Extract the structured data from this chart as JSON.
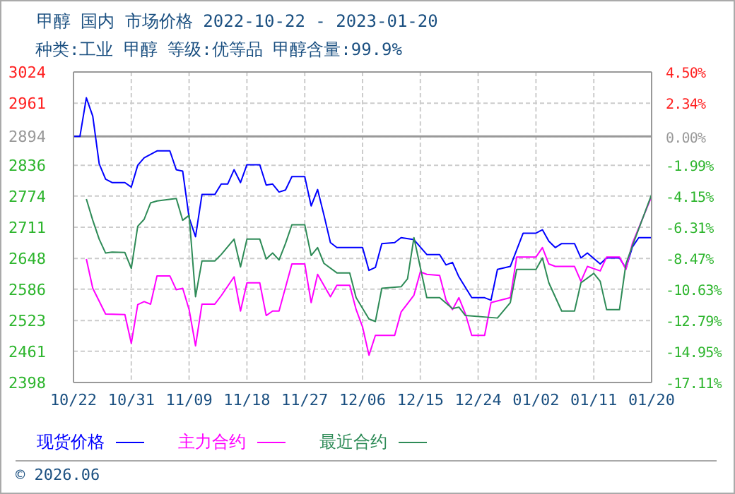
{
  "chart_data": {
    "type": "line",
    "title": "甲醇 国内 市场价格 2022-10-22 - 2023-01-20",
    "subtitle": "种类:工业 甲醇 等级:优等品 甲醇含量:99.9%",
    "annotations": [
      "© 2026.06"
    ],
    "series": [
      {
        "name": "现货价格",
        "color": "#0000ff",
        "x": [
          "2022-10-22",
          "2022-10-23",
          "2022-10-24",
          "2022-10-25",
          "2022-10-26",
          "2022-10-27",
          "2022-10-28",
          "2022-10-30",
          "2022-10-31",
          "2022-11-01",
          "2022-11-02",
          "2022-11-04",
          "2022-11-06",
          "2022-11-07",
          "2022-11-08",
          "2022-11-09",
          "2022-11-10",
          "2022-11-11",
          "2022-11-13",
          "2022-11-14",
          "2022-11-15",
          "2022-11-16",
          "2022-11-17",
          "2022-11-18",
          "2022-11-20",
          "2022-11-21",
          "2022-11-22",
          "2022-11-23",
          "2022-11-24",
          "2022-11-25",
          "2022-11-27",
          "2022-11-28",
          "2022-11-29",
          "2022-11-30",
          "2022-12-01",
          "2022-12-02",
          "2022-12-06",
          "2022-12-07",
          "2022-12-08",
          "2022-12-09",
          "2022-12-11",
          "2022-12-12",
          "2022-12-14",
          "2022-12-16",
          "2022-12-18",
          "2022-12-19",
          "2022-12-20",
          "2022-12-21",
          "2022-12-23",
          "2022-12-25",
          "2022-12-26",
          "2022-12-27",
          "2022-12-29",
          "2022-12-31",
          "2023-01-02",
          "2023-01-03",
          "2023-01-04",
          "2023-01-05",
          "2023-01-06",
          "2023-01-08",
          "2023-01-09",
          "2023-01-10",
          "2023-01-12",
          "2023-01-13",
          "2023-01-15",
          "2023-01-16",
          "2023-01-17",
          "2023-01-18",
          "2023-01-20"
        ],
        "values": [
          2894,
          2894,
          2972,
          2935,
          2839,
          2808,
          2801,
          2801,
          2792,
          2836,
          2851,
          2865,
          2865,
          2827,
          2824,
          2730,
          2692,
          2777,
          2777,
          2798,
          2798,
          2827,
          2801,
          2837,
          2837,
          2796,
          2798,
          2782,
          2786,
          2813,
          2813,
          2754,
          2787,
          2735,
          2680,
          2670,
          2670,
          2624,
          2630,
          2678,
          2680,
          2690,
          2686,
          2656,
          2656,
          2635,
          2640,
          2611,
          2569,
          2569,
          2564,
          2626,
          2632,
          2699,
          2699,
          2706,
          2683,
          2670,
          2678,
          2678,
          2649,
          2659,
          2637,
          2649,
          2649,
          2628,
          2671,
          2690,
          2690
        ]
      },
      {
        "name": "主力合约",
        "color": "#ff00ff",
        "x": [
          "2022-10-24",
          "2022-10-25",
          "2022-10-27",
          "2022-10-30",
          "2022-10-31",
          "2022-11-01",
          "2022-11-02",
          "2022-11-03",
          "2022-11-04",
          "2022-11-06",
          "2022-11-07",
          "2022-11-08",
          "2022-11-09",
          "2022-11-10",
          "2022-11-11",
          "2022-11-13",
          "2022-11-14",
          "2022-11-16",
          "2022-11-17",
          "2022-11-18",
          "2022-11-20",
          "2022-11-21",
          "2022-11-22",
          "2022-11-23",
          "2022-11-25",
          "2022-11-27",
          "2022-11-28",
          "2022-11-29",
          "2022-12-01",
          "2022-12-02",
          "2022-12-04",
          "2022-12-05",
          "2022-12-06",
          "2022-12-07",
          "2022-12-08",
          "2022-12-11",
          "2022-12-12",
          "2022-12-14",
          "2022-12-15",
          "2022-12-16",
          "2022-12-18",
          "2022-12-19",
          "2022-12-20",
          "2022-12-21",
          "2022-12-22",
          "2022-12-23",
          "2022-12-25",
          "2022-12-26",
          "2022-12-29",
          "2022-12-30",
          "2023-01-02",
          "2023-01-03",
          "2023-01-04",
          "2023-01-05",
          "2023-01-08",
          "2023-01-09",
          "2023-01-10",
          "2023-01-12",
          "2023-01-13",
          "2023-01-15",
          "2023-01-16",
          "2023-01-17",
          "2023-01-20"
        ],
        "values": [
          2647,
          2588,
          2536,
          2535,
          2477,
          2555,
          2561,
          2556,
          2613,
          2613,
          2585,
          2588,
          2545,
          2472,
          2556,
          2556,
          2573,
          2611,
          2542,
          2599,
          2599,
          2533,
          2542,
          2542,
          2637,
          2637,
          2559,
          2616,
          2571,
          2594,
          2594,
          2545,
          2510,
          2453,
          2493,
          2493,
          2540,
          2574,
          2621,
          2616,
          2614,
          2564,
          2545,
          2569,
          2537,
          2493,
          2493,
          2559,
          2569,
          2651,
          2651,
          2670,
          2637,
          2632,
          2632,
          2602,
          2632,
          2623,
          2651,
          2651,
          2626,
          2678,
          2773
        ]
      },
      {
        "name": "最近合约",
        "color": "#2e8b57",
        "x": [
          "2022-10-24",
          "2022-10-25",
          "2022-10-26",
          "2022-10-27",
          "2022-10-28",
          "2022-10-30",
          "2022-10-31",
          "2022-11-01",
          "2022-11-02",
          "2022-11-03",
          "2022-11-04",
          "2022-11-07",
          "2022-11-08",
          "2022-11-09",
          "2022-11-10",
          "2022-11-11",
          "2022-11-13",
          "2022-11-14",
          "2022-11-16",
          "2022-11-17",
          "2022-11-18",
          "2022-11-20",
          "2022-11-21",
          "2022-11-22",
          "2022-11-23",
          "2022-11-24",
          "2022-11-25",
          "2022-11-27",
          "2022-11-28",
          "2022-11-29",
          "2022-11-30",
          "2022-12-02",
          "2022-12-04",
          "2022-12-05",
          "2022-12-07",
          "2022-12-08",
          "2022-12-09",
          "2022-12-12",
          "2022-12-13",
          "2022-12-14",
          "2022-12-16",
          "2022-12-18",
          "2022-12-20",
          "2022-12-21",
          "2022-12-22",
          "2022-12-27",
          "2022-12-29",
          "2022-12-30",
          "2023-01-02",
          "2023-01-03",
          "2023-01-04",
          "2023-01-06",
          "2023-01-08",
          "2023-01-09",
          "2023-01-11",
          "2023-01-12",
          "2023-01-13",
          "2023-01-15",
          "2023-01-16",
          "2023-01-17",
          "2023-01-20"
        ],
        "values": [
          2768,
          2725,
          2687,
          2659,
          2661,
          2660,
          2628,
          2713,
          2727,
          2760,
          2764,
          2769,
          2725,
          2735,
          2571,
          2643,
          2643,
          2656,
          2687,
          2631,
          2687,
          2687,
          2647,
          2659,
          2645,
          2678,
          2716,
          2716,
          2654,
          2670,
          2638,
          2619,
          2619,
          2569,
          2526,
          2521,
          2588,
          2591,
          2607,
          2690,
          2569,
          2569,
          2547,
          2550,
          2533,
          2528,
          2559,
          2626,
          2626,
          2649,
          2599,
          2542,
          2542,
          2599,
          2618,
          2602,
          2545,
          2545,
          2637,
          2673,
          2777
        ]
      }
    ],
    "xlim": [
      "2022-10-22",
      "2023-01-20"
    ],
    "xticks": [
      {
        "value": "2022-10-22",
        "label": "10/22"
      },
      {
        "value": "2022-10-31",
        "label": "10/31"
      },
      {
        "value": "2022-11-09",
        "label": "11/09"
      },
      {
        "value": "2022-11-18",
        "label": "11/18"
      },
      {
        "value": "2022-11-27",
        "label": "11/27"
      },
      {
        "value": "2022-12-06",
        "label": "12/06"
      },
      {
        "value": "2022-12-15",
        "label": "12/15"
      },
      {
        "value": "2022-12-24",
        "label": "12/24"
      },
      {
        "value": "2023-01-02",
        "label": "01/02"
      },
      {
        "value": "2023-01-11",
        "label": "01/11"
      },
      {
        "value": "2023-01-20",
        "label": "01/20"
      }
    ],
    "ylim": [
      2398,
      3024
    ],
    "yticks": [
      2398,
      2461,
      2523,
      2586,
      2648,
      2711,
      2774,
      2836,
      2894,
      2961,
      3024
    ],
    "y2lim": [
      -17.11,
      4.5
    ],
    "y2ticks": [
      {
        "value": -17.11,
        "label": "-17.11%"
      },
      {
        "value": -14.95,
        "label": "-14.95%"
      },
      {
        "value": -12.79,
        "label": "-12.79%"
      },
      {
        "value": -10.63,
        "label": "-10.63%"
      },
      {
        "value": -8.47,
        "label": "-8.47%"
      },
      {
        "value": -6.31,
        "label": "-6.31%"
      },
      {
        "value": -4.15,
        "label": "-4.15%"
      },
      {
        "value": -1.99,
        "label": "-1.99%"
      },
      {
        "value": 0,
        "label": "0.00%"
      },
      {
        "value": 2.34,
        "label": "2.34%"
      },
      {
        "value": 4.5,
        "label": "4.50%"
      }
    ],
    "ref_lines": [
      {
        "axis": "y",
        "value": 2894,
        "color": "#999999"
      }
    ],
    "grid": true,
    "legend": "bottom",
    "marker": "none",
    "line_style": "solid"
  }
}
